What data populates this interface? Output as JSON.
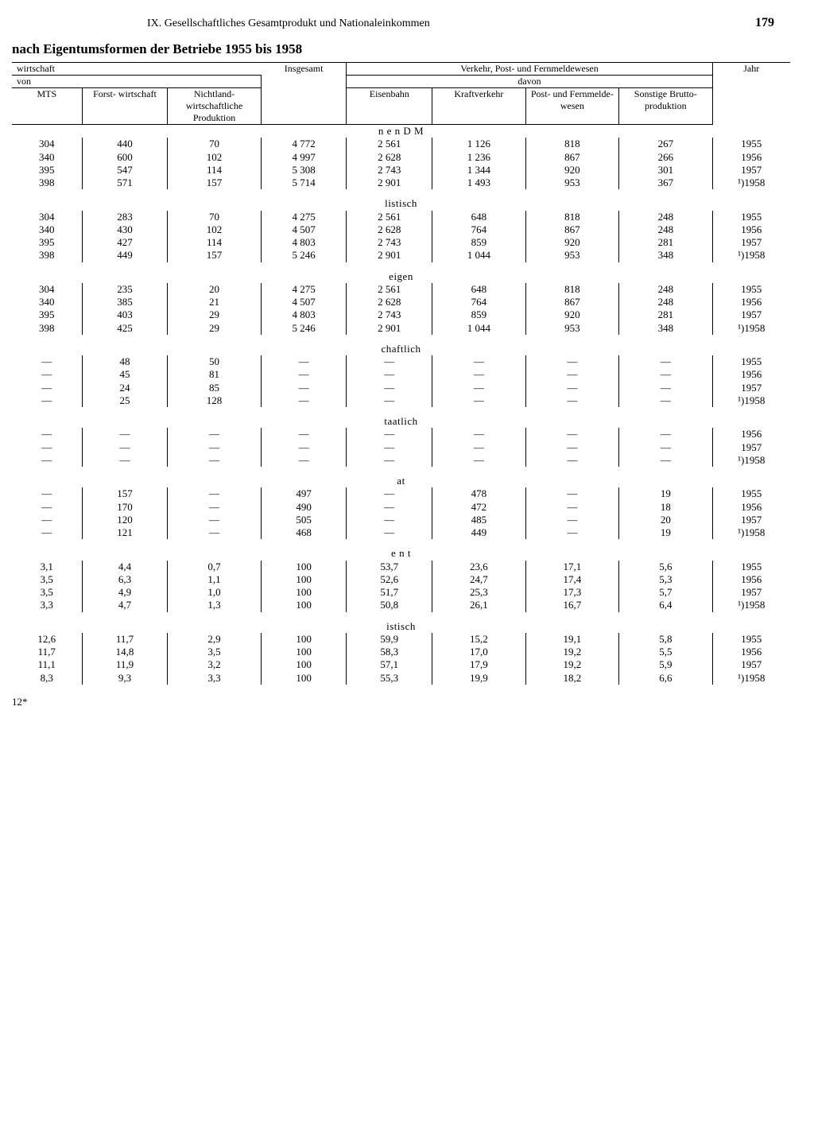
{
  "header": {
    "chapter": "IX. Gesellschaftliches Gesamtprodukt und Nationaleinkommen",
    "pageNumber": "179"
  },
  "subtitle": "nach Eigentumsformen der Betriebe 1955 bis 1958",
  "columns": {
    "top_left": "wirtschaft",
    "top_right": "Verkehr, Post- und Fernmeldewesen",
    "von": "von",
    "davon": "davon",
    "mts": "MTS",
    "forst": "Forst-\nwirtschaft",
    "nichtland": "Nichtland-\nwirtschaftliche\nProduktion",
    "insgesamt": "Insgesamt",
    "eisenbahn": "Eisenbahn",
    "kraft": "Kraftverkehr",
    "post": "Post- und\nFernmelde-\nwesen",
    "sonstige": "Sonstige\nBrutto-\nproduktion",
    "jahr": "Jahr"
  },
  "sections": [
    {
      "label": "n e n  D M",
      "rows": [
        [
          "304",
          "440",
          "70",
          "4 772",
          "2 561",
          "1 126",
          "818",
          "267",
          "1955"
        ],
        [
          "340",
          "600",
          "102",
          "4 997",
          "2 628",
          "1 236",
          "867",
          "266",
          "1956"
        ],
        [
          "395",
          "547",
          "114",
          "5 308",
          "2 743",
          "1 344",
          "920",
          "301",
          "1957"
        ],
        [
          "398",
          "571",
          "157",
          "5 714",
          "2 901",
          "1 493",
          "953",
          "367",
          "¹)1958"
        ]
      ]
    },
    {
      "label": "listisch",
      "rows": [
        [
          "304",
          "283",
          "70",
          "4 275",
          "2 561",
          "648",
          "818",
          "248",
          "1955"
        ],
        [
          "340",
          "430",
          "102",
          "4 507",
          "2 628",
          "764",
          "867",
          "248",
          "1956"
        ],
        [
          "395",
          "427",
          "114",
          "4 803",
          "2 743",
          "859",
          "920",
          "281",
          "1957"
        ],
        [
          "398",
          "449",
          "157",
          "5 246",
          "2 901",
          "1 044",
          "953",
          "348",
          "¹)1958"
        ]
      ]
    },
    {
      "label": "eigen",
      "rows": [
        [
          "304",
          "235",
          "20",
          "4 275",
          "2 561",
          "648",
          "818",
          "248",
          "1955"
        ],
        [
          "340",
          "385",
          "21",
          "4 507",
          "2 628",
          "764",
          "867",
          "248",
          "1956"
        ],
        [
          "395",
          "403",
          "29",
          "4 803",
          "2 743",
          "859",
          "920",
          "281",
          "1957"
        ],
        [
          "398",
          "425",
          "29",
          "5 246",
          "2 901",
          "1 044",
          "953",
          "348",
          "¹)1958"
        ]
      ]
    },
    {
      "label": "chaftlich",
      "rows": [
        [
          "—",
          "48",
          "50",
          "—",
          "—",
          "—",
          "—",
          "—",
          "1955"
        ],
        [
          "—",
          "45",
          "81",
          "—",
          "—",
          "—",
          "—",
          "—",
          "1956"
        ],
        [
          "—",
          "24",
          "85",
          "—",
          "—",
          "—",
          "—",
          "—",
          "1957"
        ],
        [
          "—",
          "25",
          "128",
          "—",
          "—",
          "—",
          "—",
          "—",
          "¹)1958"
        ]
      ]
    },
    {
      "label": "taatlich",
      "rows": [
        [
          "—",
          "—",
          "—",
          "—",
          "—",
          "—",
          "—",
          "—",
          "1956"
        ],
        [
          "—",
          "—",
          "—",
          "—",
          "—",
          "—",
          "—",
          "—",
          "1957"
        ],
        [
          "—",
          "—",
          "—",
          "—",
          "—",
          "—",
          "—",
          "—",
          "¹)1958"
        ]
      ]
    },
    {
      "label": "at",
      "rows": [
        [
          "—",
          "157",
          "—",
          "497",
          "—",
          "478",
          "—",
          "19",
          "1955"
        ],
        [
          "—",
          "170",
          "—",
          "490",
          "—",
          "472",
          "—",
          "18",
          "1956"
        ],
        [
          "—",
          "120",
          "—",
          "505",
          "—",
          "485",
          "—",
          "20",
          "1957"
        ],
        [
          "—",
          "121",
          "—",
          "468",
          "—",
          "449",
          "—",
          "19",
          "¹)1958"
        ]
      ]
    },
    {
      "label": "e n t",
      "rows": [
        [
          "3,1",
          "4,4",
          "0,7",
          "100",
          "53,7",
          "23,6",
          "17,1",
          "5,6",
          "1955"
        ],
        [
          "3,5",
          "6,3",
          "1,1",
          "100",
          "52,6",
          "24,7",
          "17,4",
          "5,3",
          "1956"
        ],
        [
          "3,5",
          "4,9",
          "1,0",
          "100",
          "51,7",
          "25,3",
          "17,3",
          "5,7",
          "1957"
        ],
        [
          "3,3",
          "4,7",
          "1,3",
          "100",
          "50,8",
          "26,1",
          "16,7",
          "6,4",
          "¹)1958"
        ]
      ]
    },
    {
      "label": "istisch",
      "rows": [
        [
          "12,6",
          "11,7",
          "2,9",
          "100",
          "59,9",
          "15,2",
          "19,1",
          "5,8",
          "1955"
        ],
        [
          "11,7",
          "14,8",
          "3,5",
          "100",
          "58,3",
          "17,0",
          "19,2",
          "5,5",
          "1956"
        ],
        [
          "11,1",
          "11,9",
          "3,2",
          "100",
          "57,1",
          "17,9",
          "19,2",
          "5,9",
          "1957"
        ],
        [
          "8,3",
          "9,3",
          "3,3",
          "100",
          "55,3",
          "19,9",
          "18,2",
          "6,6",
          "¹)1958"
        ]
      ]
    }
  ],
  "footer": "12*",
  "style": {
    "background": "#ffffff",
    "text": "#000000",
    "rule": "#000000",
    "font_body_pt": 13,
    "font_head_pt": 12,
    "font_title_pt": 17
  }
}
